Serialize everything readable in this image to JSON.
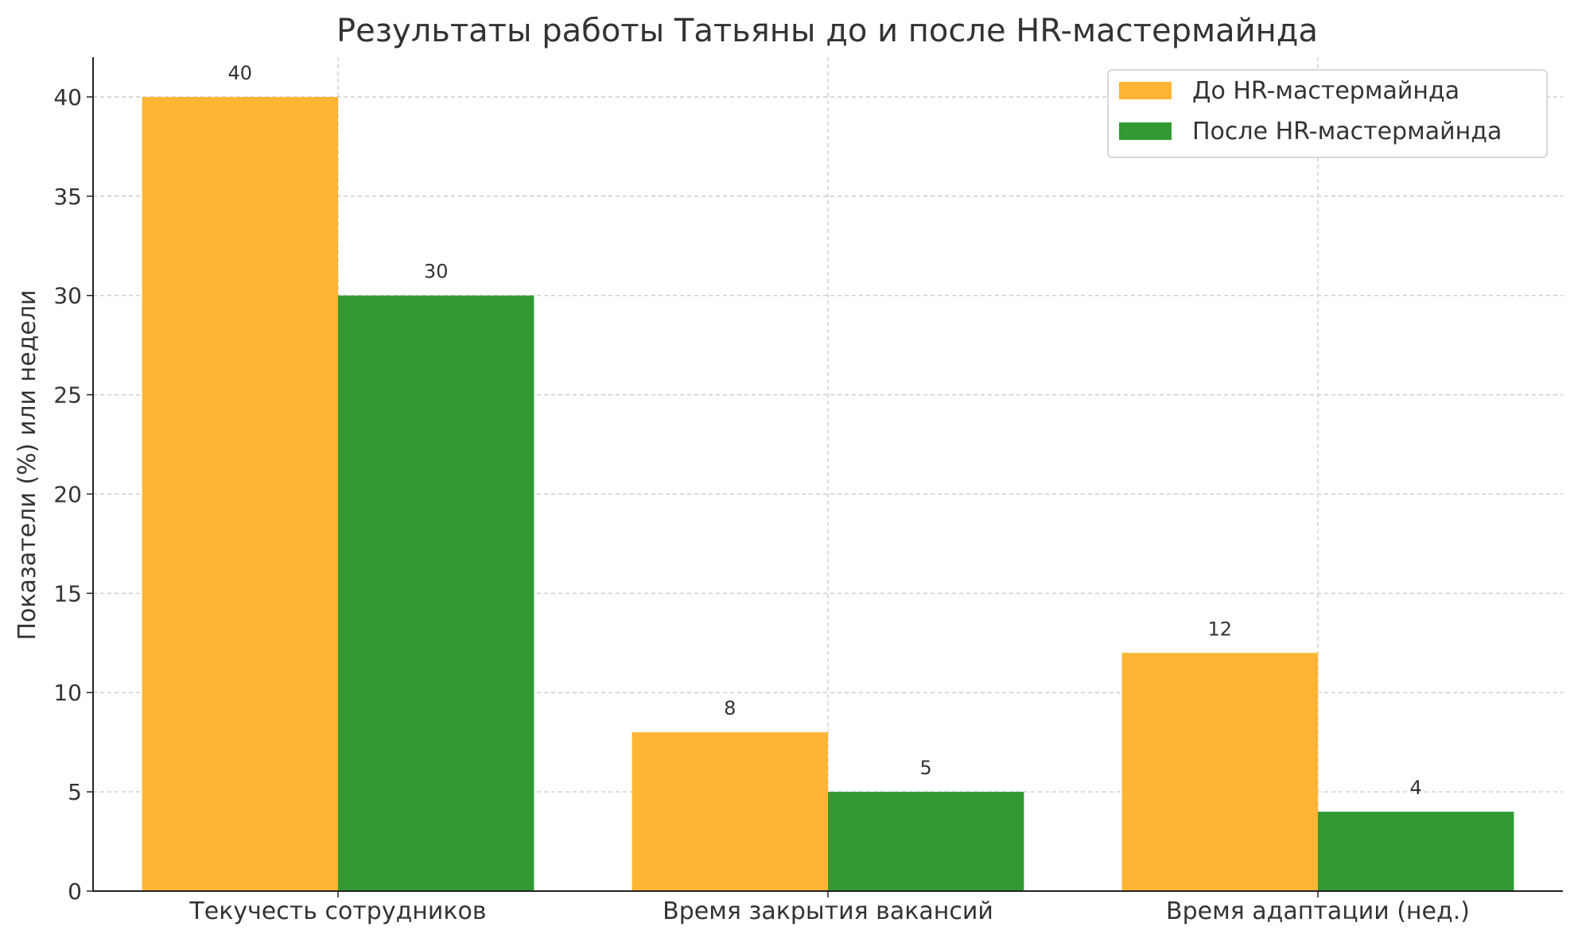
{
  "chart_data": {
    "type": "bar",
    "title": "Результаты работы Татьяны до и после HR-мастермайнда",
    "xlabel": "",
    "ylabel": "Показатели (%) или недели",
    "categories": [
      "Текучесть сотрудников",
      "Время закрытия вакансий",
      "Время адаптации (нед.)"
    ],
    "series": [
      {
        "name": "До HR-мастермайнда",
        "values": [
          40,
          8,
          12
        ],
        "color": "#FFB534"
      },
      {
        "name": "После HR-мастермайнда",
        "values": [
          30,
          5,
          4
        ],
        "color": "#339933"
      }
    ],
    "ylim": [
      0,
      42
    ],
    "yticks": [
      0,
      5,
      10,
      15,
      20,
      25,
      30,
      35,
      40
    ],
    "grid": true,
    "legend_position": "top-right"
  }
}
